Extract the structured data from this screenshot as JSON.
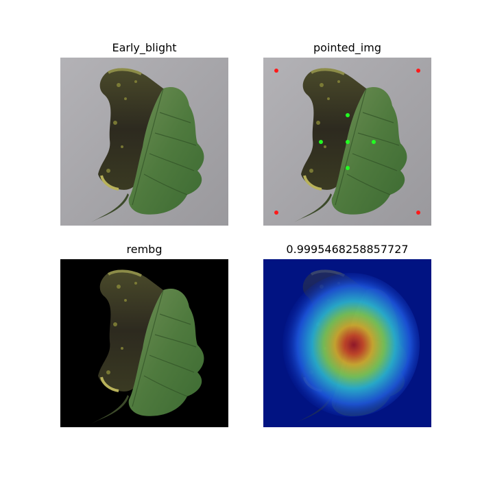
{
  "figure": {
    "panels": [
      {
        "title": "Early_blight",
        "image": "original leaf photo"
      },
      {
        "title": "pointed_img",
        "image": "leaf photo with point prompts"
      },
      {
        "title": "rembg",
        "image": "leaf with background removed"
      },
      {
        "title": "0.9995468258857727",
        "image": "grad-cam heatmap overlay"
      }
    ]
  },
  "colors": {
    "background_gray": "#a9a8ac",
    "point_red": "#ff1a1a",
    "point_green": "#22ff22",
    "heat_blue": "#001a8c"
  }
}
